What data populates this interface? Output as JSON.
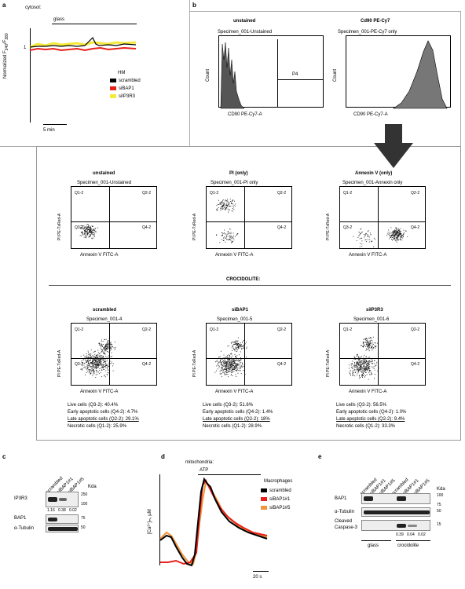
{
  "panels": {
    "a": {
      "letter": "a",
      "title": "cytosol:",
      "bar_label": "glass",
      "ylabel": "Normalized F",
      "ylabel_sub1": "340",
      "ylabel_mid": "/F",
      "ylabel_sub2": "380",
      "ytick": "1",
      "scale_label": "5 min",
      "legend_title": "HM",
      "legend": [
        {
          "label": "scrambled",
          "color": "#000000"
        },
        {
          "label": "siBAP1",
          "color": "#e8201a"
        },
        {
          "label": "siIP3R3",
          "color": "#f5ea3a"
        }
      ]
    },
    "b": {
      "letter": "b",
      "histograms": [
        {
          "title": "unstained",
          "specimen": "Specimen_001-Unstained",
          "xlabel": "CD90 PE-Cy7-A",
          "ylabel": "Count",
          "gate": "P4"
        },
        {
          "title": "Cd90 PE-Cy7",
          "specimen": "Specimen_001-PE-Cy7 only",
          "xlabel": "CD90 PE-Cy7-A",
          "ylabel": "Count"
        }
      ],
      "controls": [
        {
          "title": "unstained",
          "specimen": "Specimen_001-Unstained"
        },
        {
          "title": "PI (only)",
          "specimen": "Specimen_001-PI only"
        },
        {
          "title": "Annexin V (only)",
          "specimen": "Specimen_001-Annexin only"
        }
      ],
      "plot_xlabel": "Annexin V FITC-A",
      "plot_ylabel": "PI PE-TxRed-A",
      "quadrants": {
        "q1": "Q1-2",
        "q2": "Q2-2",
        "q3": "Q3-2",
        "q4": "Q4-2"
      },
      "section_title": "CROCIDOLITE:",
      "samples": [
        {
          "title": "scrambled",
          "specimen": "Specimen_001-4",
          "stats": [
            "Live cells (Q3-2): 40.4%",
            "Early apoptotic cells (Q4-2): 4.7%",
            "Late apoptotic cells (Q2-2): 29.1%",
            "Necrotic cells (Q1-2): 25.9%"
          ]
        },
        {
          "title": "siBAP1",
          "specimen": "Specimen_001-5",
          "stats": [
            "Live cells (Q3-2): 51.6%",
            "Early apoptotic cells (Q4-2): 1.4%",
            "Late apoptotic cells (Q2-2): 18%",
            "Necrotic cells (Q1-2): 28.9%"
          ]
        },
        {
          "title": "siIP3R3",
          "specimen": "Specimen_001-6",
          "stats": [
            "Live cells (Q3-2): 56.5%",
            "Early apoptotic cells (Q4-2): 1.0%",
            "Late apoptotic cells (Q2-2): 9.4%",
            "Necrotic cells (Q1-2): 33.3%"
          ]
        }
      ]
    },
    "c": {
      "letter": "c",
      "lanes": [
        "scrambled",
        "siBAP1#1",
        "siBAP1#5"
      ],
      "kda_label": "Kda",
      "rows": [
        {
          "label": "IP3R3",
          "markers": [
            "250",
            "100"
          ]
        },
        {
          "label": "BAP1",
          "markers": [
            "75"
          ]
        },
        {
          "label": "α-Tubulin",
          "markers": [
            "50"
          ]
        }
      ],
      "quant": [
        "1.16",
        "0.38",
        "0.02"
      ]
    },
    "d": {
      "letter": "d",
      "title": "mitochondria:",
      "bar_label": "ATP",
      "ylabel": "[Ca²⁺]ₘ, μM",
      "scale_label": "20 s",
      "legend_title": "Macrophages",
      "legend": [
        {
          "label": "scrambled",
          "color": "#000000"
        },
        {
          "label": "siBAP1#1",
          "color": "#e8201a"
        },
        {
          "label": "siBAP1#5",
          "color": "#f0933a"
        }
      ]
    },
    "e": {
      "letter": "e",
      "lanes": [
        "scrambled",
        "siBAP1#1",
        "siBAP1#5",
        "scrambled",
        "siBAP1#1",
        "siBAP1#5"
      ],
      "kda_label": "Kda",
      "rows": [
        {
          "label": "BAP1",
          "markers": [
            "100",
            "75"
          ]
        },
        {
          "label": "α-Tubulin",
          "markers": [
            "50"
          ]
        },
        {
          "label": "Cleaved",
          "label2": "Caspase-3",
          "markers": [
            "15"
          ]
        }
      ],
      "quant": [
        "0.39",
        "0.04",
        "0.02"
      ],
      "groups": [
        "glass",
        "crocidolite"
      ]
    }
  }
}
